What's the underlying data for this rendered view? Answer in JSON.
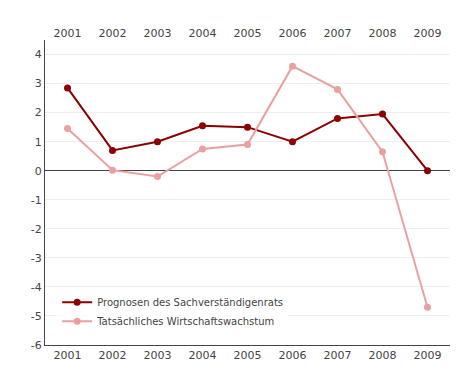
{
  "chart_data": {
    "type": "line",
    "x": [
      2001,
      2002,
      2003,
      2004,
      2005,
      2006,
      2007,
      2008,
      2009
    ],
    "series": [
      {
        "name": "Prognosen des Sachverständigenrats",
        "color": "#8B0000",
        "marker": "circle",
        "line_style": "solid",
        "values": [
          2.85,
          0.7,
          1.0,
          1.55,
          1.5,
          1.0,
          1.8,
          1.95,
          0.0
        ]
      },
      {
        "name": "Tatsächliches Wirtschaftswachstum",
        "color": "#E8A0A0",
        "marker": "circle",
        "line_style": "solid",
        "values": [
          1.45,
          0.02,
          -0.2,
          0.75,
          0.9,
          3.6,
          2.8,
          0.65,
          -4.7
        ]
      }
    ],
    "xlim": [
      2000.5,
      2009.5
    ],
    "xticks": [
      2001,
      2002,
      2003,
      2004,
      2005,
      2006,
      2007,
      2008,
      2009
    ],
    "ylim": [
      -6,
      4.5
    ],
    "yticks": [
      -6,
      -5,
      -4,
      -3,
      -2,
      -1,
      0,
      1,
      2,
      3,
      4
    ],
    "grid": "y",
    "legend": "lower left"
  }
}
